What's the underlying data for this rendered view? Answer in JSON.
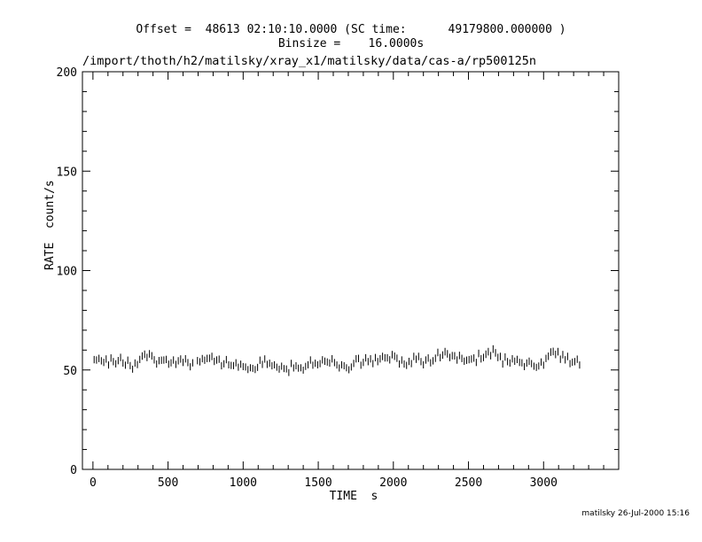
{
  "header": {
    "offset_line": "Offset =  48613 02:10:10.0000 (SC time:      49179800.000000 )",
    "binsize_line": "Binsize =    16.0000s",
    "file_path": "/import/thoth/h2/matilsky/xray_x1/matilsky/data/cas-a/rp500125n"
  },
  "footer": {
    "stamp": "matilsky 26-Jul-2000 15:16"
  },
  "chart_data": {
    "type": "scatter",
    "title": "",
    "xlabel": "TIME  s",
    "ylabel": "RATE  count/s",
    "xlim": [
      -70,
      3500
    ],
    "ylim": [
      0,
      200
    ],
    "x_ticks": [
      0,
      500,
      1000,
      1500,
      2000,
      2500,
      3000
    ],
    "y_ticks": [
      0,
      50,
      100,
      150,
      200
    ],
    "grid": false,
    "error_bars": true,
    "segments": [
      {
        "x_start": 8,
        "bin": 16,
        "values": [
          55.2,
          55.0,
          55.8,
          54.6,
          53.8,
          55.5,
          52.5,
          56.0,
          54.2,
          53.1,
          54.7,
          56.3,
          53.5,
          52.4,
          54.9,
          52.2,
          50.4,
          53.5,
          52.7,
          55.3,
          57.0,
          57.9,
          56.3,
          58.1,
          57.1,
          55.1,
          53.0,
          54.7,
          54.9,
          55.0,
          55.3,
          52.9,
          53.6,
          55.0,
          52.8,
          54.6,
          55.5,
          53.8,
          55.6,
          53.7,
          51.6,
          53.6
        ]
      },
      {
        "x_start": 696,
        "bin": 16,
        "values": [
          54.7,
          54.1,
          55.7,
          54.9,
          55.8,
          55.9,
          56.8,
          54.3,
          55.0,
          55.4,
          52.1,
          53.1,
          55.2,
          52.6,
          52.3,
          52.2,
          53.6,
          51.4,
          52.9,
          51.7,
          51.5,
          50.2,
          51.1,
          50.8,
          50.2,
          51.3,
          54.9,
          52.8,
          55.5,
          52.8,
          53.4,
          52.1,
          52.6,
          51.4,
          50.4,
          51.9,
          50.7,
          50.5,
          48.7,
          53.3,
          51.0,
          52.1,
          50.9,
          51.1,
          49.9,
          51.8,
          52.6,
          55.0,
          52.4,
          53.4,
          52.6,
          53.2,
          55.1,
          54.4,
          54.0,
          53.5,
          55.6,
          53.7,
          52.5,
          51.0,
          52.6,
          52.1,
          51.1,
          50.1,
          51.5,
          53.3,
          55.6,
          55.8,
          52.4,
          53.8,
          56.1,
          54.2,
          55.6,
          53.2,
          56.2,
          54.2,
          55.6,
          56.8,
          56.1,
          56.1,
          55.1,
          57.7,
          56.9,
          55.9,
          53.0,
          55.0,
          53.0,
          52.3,
          54.3,
          53.2,
          56.8,
          55.4,
          56.8,
          54.2,
          52.6,
          55.0,
          56.0,
          53.6,
          54.6,
          55.9,
          58.8,
          56.2,
          57.5,
          59.2,
          58.1,
          56.3,
          57.2,
          57.1,
          55.0,
          57.3,
          55.8,
          54.4,
          54.9,
          55.2,
          55.5,
          56.0,
          53.8,
          58.3,
          55.6,
          56.3,
          57.9,
          59.2,
          57.2,
          60.5,
          58.6,
          56.3,
          56.8,
          53.0,
          56.5,
          54.2,
          53.5,
          55.6,
          54.4,
          55.3,
          53.8,
          53.6,
          51.7,
          53.5,
          54.4,
          53.2,
          51.9,
          51.3,
          52.0,
          54.0,
          52.4,
          55.8,
          56.9,
          59.0,
          59.3,
          57.8,
          59.2,
          55.4,
          57.7,
          55.1,
          56.8,
          53.2,
          53.9,
          54.2,
          55.4,
          52.5
        ]
      }
    ]
  }
}
